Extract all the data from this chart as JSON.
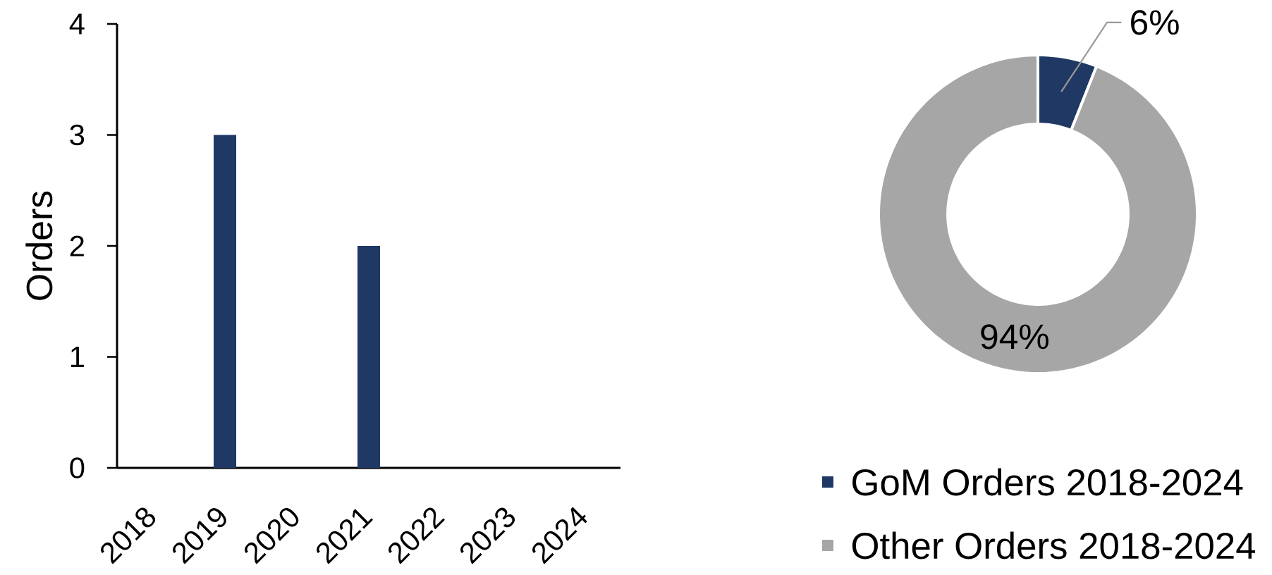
{
  "chart_data": [
    {
      "type": "bar",
      "ylabel": "Orders",
      "categories": [
        "2018",
        "2019",
        "2020",
        "2021",
        "2022",
        "2023",
        "2024"
      ],
      "values": [
        0,
        3,
        0,
        2,
        0,
        0,
        0
      ],
      "color": "#1f3864",
      "ylim": [
        0,
        4
      ],
      "yticks": [
        0,
        1,
        2,
        3,
        4
      ]
    },
    {
      "type": "donut",
      "categories": [
        "GoM Orders 2018-2024",
        "Other Orders 2018-2024"
      ],
      "values": [
        6,
        94
      ],
      "colors": [
        "#1f3864",
        "#a6a6a6"
      ],
      "value_labels": [
        "6%",
        "94%"
      ],
      "legend": "bottom"
    }
  ]
}
